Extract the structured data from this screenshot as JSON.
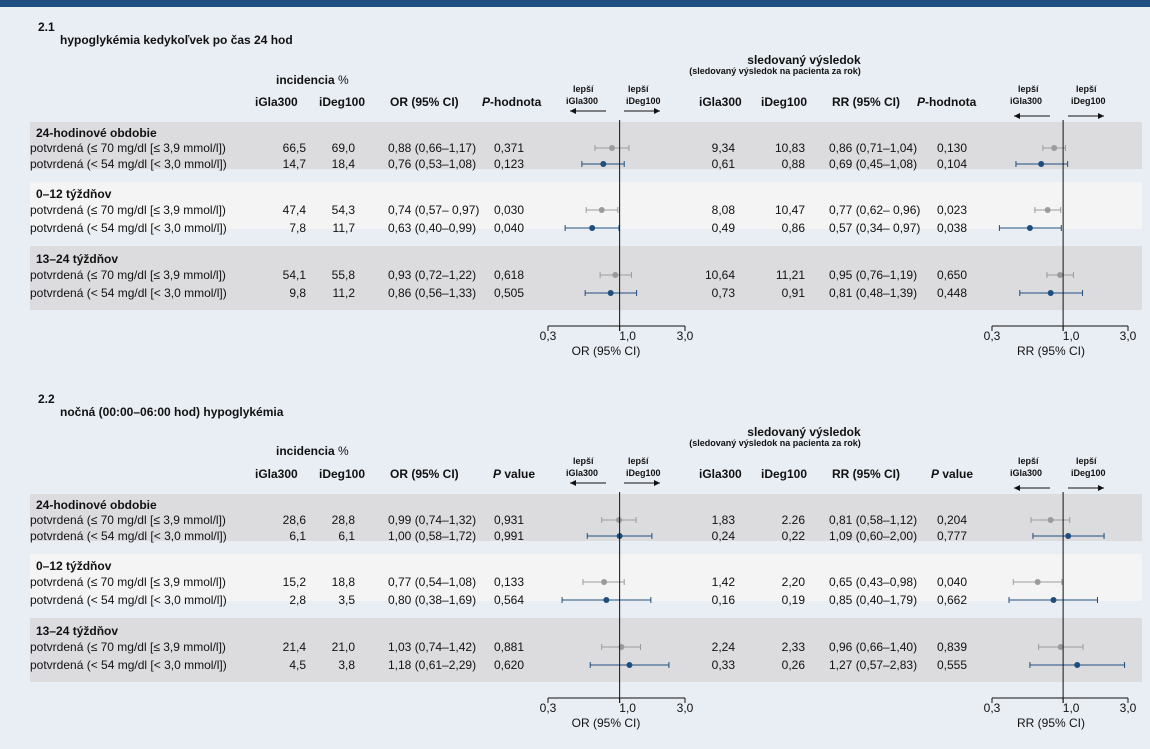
{
  "colors": {
    "grey_series": "#9b9b9b",
    "blue_series": "#1e4e7e",
    "top_bar": "#1f4f82",
    "background": "#e9edf4"
  },
  "labels": {
    "incidencia": "incidencia",
    "percent": "%",
    "sledovany": "sledovaný výsledok",
    "sledovany_sub": "(sledovaný výsledok na pacienta za rok)",
    "lepsi": "lepší",
    "iGla300": "iGla300",
    "iDeg100": "iDeg100",
    "or_ci": "OR (95% CI)",
    "rr_ci": "RR (95% CI)",
    "tick_03": "0,3",
    "tick_1": "1,0",
    "tick_3": "3,0",
    "or_axis": "OR (95% CI)",
    "rr_axis": "RR (95% CI)"
  },
  "panels": [
    {
      "number": "2.1",
      "title": "hypoglykémia kedykoľvek po čas 24 hod",
      "p_prefix": "P",
      "p_label": "-hodnota",
      "groups": [
        {
          "name": "24-hodinové obdobie",
          "rows": [
            {
              "label": "potvrdená (≤ 70 mg/dl [≤ 3,9 mmol/l])",
              "inc_gla": "66,5",
              "inc_deg": "69,0",
              "or": "0,88 (0,66–1,17)",
              "p_or": "0,371",
              "ev_gla": "9,34",
              "ev_deg": "10,83",
              "rr": "0,86 (0,71–1,04)",
              "p_rr": "0,130"
            },
            {
              "label": "potvrdená (< 54 mg/dl [< 3,0 mmol/l])",
              "inc_gla": "14,7",
              "inc_deg": "18,4",
              "or": "0,76 (0,53–1,08)",
              "p_or": "0,123",
              "ev_gla": "0,61",
              "ev_deg": "0,88",
              "rr": "0,69 (0,45–1,08)",
              "p_rr": "0,104"
            }
          ]
        },
        {
          "name": "0–12 týždňov",
          "rows": [
            {
              "label": "potvrdená (≤ 70 mg/dl [≤ 3,9 mmol/l])",
              "inc_gla": "47,4",
              "inc_deg": "54,3",
              "or": "0,74 (0,57– 0,97)",
              "p_or": "0,030",
              "ev_gla": "8,08",
              "ev_deg": "10,47",
              "rr": "0,77 (0,62– 0,96)",
              "p_rr": "0,023"
            },
            {
              "label": "potvrdená (< 54 mg/dl [< 3,0 mmol/l])",
              "inc_gla": "7,8",
              "inc_deg": "11,7",
              "or": "0,63 (0,40–0,99)",
              "p_or": "0,040",
              "ev_gla": "0,49",
              "ev_deg": "0,86",
              "rr": "0,57 (0,34– 0,97)",
              "p_rr": "0,038"
            }
          ]
        },
        {
          "name": "13–24 týždňov",
          "rows": [
            {
              "label": "potvrdená (≤ 70 mg/dl [≤ 3,9 mmol/l])",
              "inc_gla": "54,1",
              "inc_deg": "55,8",
              "or": "0,93 (0,72–1,22)",
              "p_or": "0,618",
              "ev_gla": "10,64",
              "ev_deg": "11,21",
              "rr": "0,95 (0,76–1,19)",
              "p_rr": "0,650"
            },
            {
              "label": "potvrdená (< 54 mg/dl [< 3,0 mmol/l])",
              "inc_gla": "9,8",
              "inc_deg": "11,2",
              "or": "0,86 (0,56–1,33)",
              "p_or": "0,505",
              "ev_gla": "0,73",
              "ev_deg": "0,91",
              "rr": "0,81 (0,48–1,39)",
              "p_rr": "0,448"
            }
          ]
        }
      ]
    },
    {
      "number": "2.2",
      "title": "nočná (00:00–06:00 hod) hypoglykémia",
      "p_prefix": "P",
      "p_label": " value",
      "groups": [
        {
          "name": "24-hodinové obdobie",
          "rows": [
            {
              "label": "potvrdená (≤ 70 mg/dl [≤ 3,9 mmol/l])",
              "inc_gla": "28,6",
              "inc_deg": "28,8",
              "or": "0,99 (0,74–1,32)",
              "p_or": "0,931",
              "ev_gla": "1,83",
              "ev_deg": "2.26",
              "rr": "0,81 (0,58–1,12)",
              "p_rr": "0,204"
            },
            {
              "label": "potvrdená (< 54 mg/dl [< 3,0 mmol/l])",
              "inc_gla": "6,1",
              "inc_deg": "6,1",
              "or": "1,00 (0,58–1,72)",
              "p_or": "0,991",
              "ev_gla": "0,24",
              "ev_deg": "0,22",
              "rr": "1,09 (0,60–2,00)",
              "p_rr": "0,777"
            }
          ]
        },
        {
          "name": "0–12 týždňov",
          "rows": [
            {
              "label": "potvrdená (≤ 70 mg/dl [≤ 3,9 mmol/l])",
              "inc_gla": "15,2",
              "inc_deg": "18,8",
              "or": "0,77 (0,54–1,08)",
              "p_or": "0,133",
              "ev_gla": "1,42",
              "ev_deg": "2,20",
              "rr": "0,65 (0,43–0,98)",
              "p_rr": "0,040"
            },
            {
              "label": "potvrdená (< 54 mg/dl [< 3,0 mmol/l])",
              "inc_gla": "2,8",
              "inc_deg": "3,5",
              "or": "0,80 (0,38–1,69)",
              "p_or": "0,564",
              "ev_gla": "0,16",
              "ev_deg": "0,19",
              "rr": "0,85 (0,40–1,79)",
              "p_rr": "0,662"
            }
          ]
        },
        {
          "name": "13–24 týždňov",
          "rows": [
            {
              "label": "potvrdená (≤ 70 mg/dl [≤ 3,9 mmol/l])",
              "inc_gla": "21,4",
              "inc_deg": "21,0",
              "or": "1,03 (0,74–1,42)",
              "p_or": "0,881",
              "ev_gla": "2,24",
              "ev_deg": "2,33",
              "rr": "0,96 (0,66–1,40)",
              "p_rr": "0,839"
            },
            {
              "label": "potvrdená (< 54 mg/dl [< 3,0 mmol/l])",
              "inc_gla": "4,5",
              "inc_deg": "3,8",
              "or": "1,18 (0,61–2,29)",
              "p_or": "0,620",
              "ev_gla": "0,33",
              "ev_deg": "0,26",
              "rr": "1,27 (0,57–2,83)",
              "p_rr": "0,555"
            }
          ]
        }
      ]
    }
  ],
  "chart_data": [
    {
      "type": "forest",
      "scale": "log",
      "xlim": [
        0.3,
        3.0
      ],
      "xticks": [
        "0,3",
        "1,0",
        "3,0"
      ],
      "xlabel": "OR (95% CI)",
      "reference_line": 1.0,
      "points": [
        {
          "est": 0.88,
          "lo": 0.66,
          "hi": 1.17
        },
        {
          "est": 0.76,
          "lo": 0.53,
          "hi": 1.08
        },
        {
          "est": 0.74,
          "lo": 0.57,
          "hi": 0.97
        },
        {
          "est": 0.63,
          "lo": 0.4,
          "hi": 0.99
        },
        {
          "est": 0.93,
          "lo": 0.72,
          "hi": 1.22
        },
        {
          "est": 0.86,
          "lo": 0.56,
          "hi": 1.33
        }
      ]
    },
    {
      "type": "forest",
      "scale": "log",
      "xlim": [
        0.3,
        3.0
      ],
      "xticks": [
        "0,3",
        "1,0",
        "3,0"
      ],
      "xlabel": "RR (95% CI)",
      "reference_line": 1.0,
      "points": [
        {
          "est": 0.86,
          "lo": 0.71,
          "hi": 1.04
        },
        {
          "est": 0.69,
          "lo": 0.45,
          "hi": 1.08
        },
        {
          "est": 0.77,
          "lo": 0.62,
          "hi": 0.96
        },
        {
          "est": 0.57,
          "lo": 0.34,
          "hi": 0.97
        },
        {
          "est": 0.95,
          "lo": 0.76,
          "hi": 1.19
        },
        {
          "est": 0.81,
          "lo": 0.48,
          "hi": 1.39
        }
      ]
    },
    {
      "type": "forest",
      "scale": "log",
      "xlim": [
        0.3,
        3.0
      ],
      "xticks": [
        "0,3",
        "1,0",
        "3,0"
      ],
      "xlabel": "OR (95% CI)",
      "reference_line": 1.0,
      "points": [
        {
          "est": 0.99,
          "lo": 0.74,
          "hi": 1.32
        },
        {
          "est": 1.0,
          "lo": 0.58,
          "hi": 1.72
        },
        {
          "est": 0.77,
          "lo": 0.54,
          "hi": 1.08
        },
        {
          "est": 0.8,
          "lo": 0.38,
          "hi": 1.69
        },
        {
          "est": 1.03,
          "lo": 0.74,
          "hi": 1.42
        },
        {
          "est": 1.18,
          "lo": 0.61,
          "hi": 2.29
        }
      ]
    },
    {
      "type": "forest",
      "scale": "log",
      "xlim": [
        0.3,
        3.0
      ],
      "xticks": [
        "0,3",
        "1,0",
        "3,0"
      ],
      "xlabel": "RR (95% CI)",
      "reference_line": 1.0,
      "points": [
        {
          "est": 0.81,
          "lo": 0.58,
          "hi": 1.12
        },
        {
          "est": 1.09,
          "lo": 0.6,
          "hi": 2.0
        },
        {
          "est": 0.65,
          "lo": 0.43,
          "hi": 0.98
        },
        {
          "est": 0.85,
          "lo": 0.4,
          "hi": 1.79
        },
        {
          "est": 0.96,
          "lo": 0.66,
          "hi": 1.4
        },
        {
          "est": 1.27,
          "lo": 0.57,
          "hi": 2.83
        }
      ]
    }
  ]
}
